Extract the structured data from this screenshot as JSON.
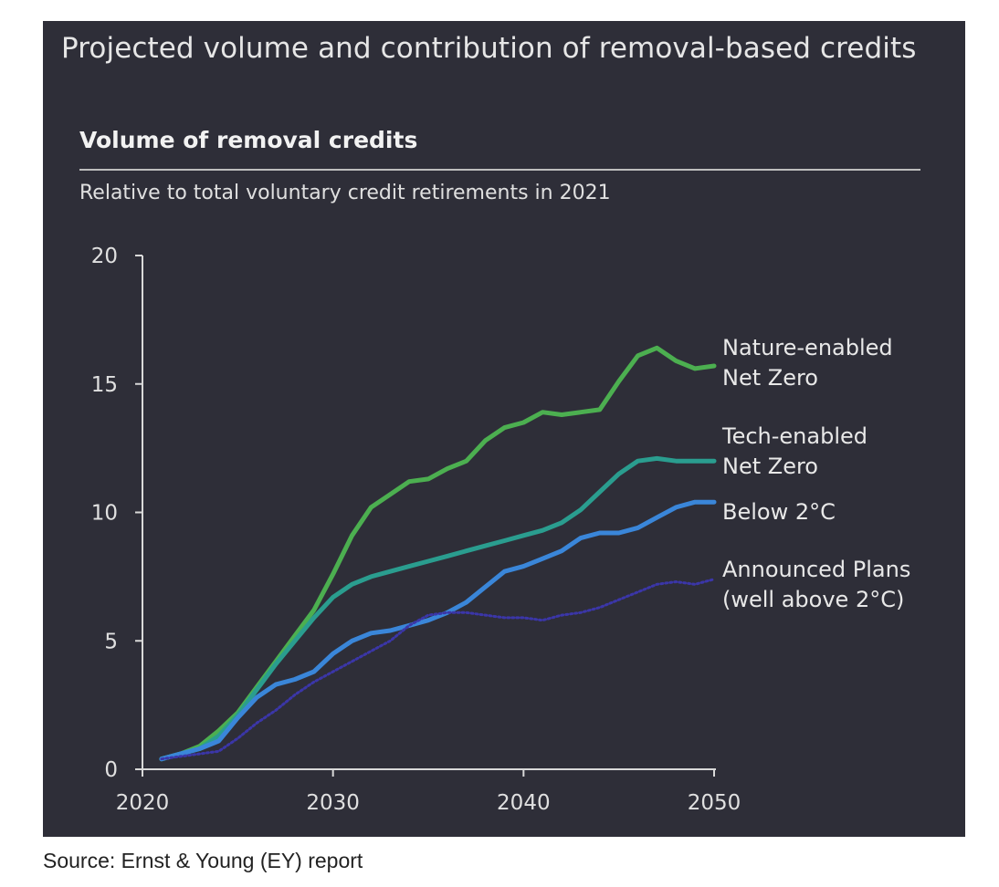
{
  "header": {
    "title": "Projected volume and contribution of removal-based credits",
    "subtitle": "Volume of removal credits",
    "note": "Relative to total voluntary credit retirements in 2021"
  },
  "source": "Source: Ernst & Young (EY) report",
  "colors": {
    "background": "#2e2e38",
    "nature": "#4caf50",
    "tech": "#2a9d8f",
    "below2": "#3a86d9",
    "announced": "#3b36a8"
  },
  "chart_data": {
    "type": "line",
    "title": "Volume of removal credits",
    "xlabel": "",
    "ylabel": "",
    "xlim": [
      2020,
      2050
    ],
    "ylim": [
      0,
      20
    ],
    "xticks": [
      "2020",
      "2030",
      "2040",
      "2050"
    ],
    "yticks": [
      "0",
      "5",
      "10",
      "15",
      "20"
    ],
    "grid": false,
    "legend": "inline labels at right end of each line",
    "x": [
      2021,
      2022,
      2023,
      2024,
      2025,
      2026,
      2027,
      2028,
      2029,
      2030,
      2031,
      2032,
      2033,
      2034,
      2035,
      2036,
      2037,
      2038,
      2039,
      2040,
      2041,
      2042,
      2043,
      2044,
      2045,
      2046,
      2047,
      2048,
      2049,
      2050
    ],
    "series": [
      {
        "name": "Nature-enabled Net Zero",
        "label_lines": [
          "Nature-enabled",
          "Net Zero"
        ],
        "color": "#4caf50",
        "style": "solid",
        "values": [
          0.4,
          0.6,
          0.9,
          1.5,
          2.2,
          3.2,
          4.2,
          5.2,
          6.2,
          7.6,
          9.1,
          10.2,
          10.7,
          11.2,
          11.3,
          11.7,
          12.0,
          12.8,
          13.3,
          13.5,
          13.9,
          13.8,
          13.9,
          14.0,
          15.1,
          16.1,
          16.4,
          15.9,
          15.6,
          15.7
        ]
      },
      {
        "name": "Tech-enabled Net Zero",
        "label_lines": [
          "Tech-enabled",
          "Net Zero"
        ],
        "color": "#2a9d8f",
        "style": "solid",
        "values": [
          0.4,
          0.6,
          0.8,
          1.3,
          2.1,
          3.1,
          4.1,
          5.0,
          5.9,
          6.7,
          7.2,
          7.5,
          7.7,
          7.9,
          8.1,
          8.3,
          8.5,
          8.7,
          8.9,
          9.1,
          9.3,
          9.6,
          10.1,
          10.8,
          11.5,
          12.0,
          12.1,
          12.0,
          12.0,
          12.0
        ]
      },
      {
        "name": "Below 2°C",
        "label_lines": [
          "Below 2°C"
        ],
        "color": "#3a86d9",
        "style": "solid",
        "values": [
          0.4,
          0.6,
          0.8,
          1.1,
          2.0,
          2.8,
          3.3,
          3.5,
          3.8,
          4.5,
          5.0,
          5.3,
          5.4,
          5.6,
          5.8,
          6.1,
          6.5,
          7.1,
          7.7,
          7.9,
          8.2,
          8.5,
          9.0,
          9.2,
          9.2,
          9.4,
          9.8,
          10.2,
          10.4,
          10.4
        ]
      },
      {
        "name": "Announced Plans (well above 2°C)",
        "label_lines": [
          "Announced Plans",
          "(well above 2°C)"
        ],
        "color": "#3b36a8",
        "style": "dotted",
        "values": [
          0.4,
          0.5,
          0.6,
          0.7,
          1.2,
          1.8,
          2.3,
          2.9,
          3.4,
          3.8,
          4.2,
          4.6,
          5.0,
          5.6,
          6.0,
          6.1,
          6.1,
          6.0,
          5.9,
          5.9,
          5.8,
          6.0,
          6.1,
          6.3,
          6.6,
          6.9,
          7.2,
          7.3,
          7.2,
          7.4
        ]
      }
    ]
  }
}
